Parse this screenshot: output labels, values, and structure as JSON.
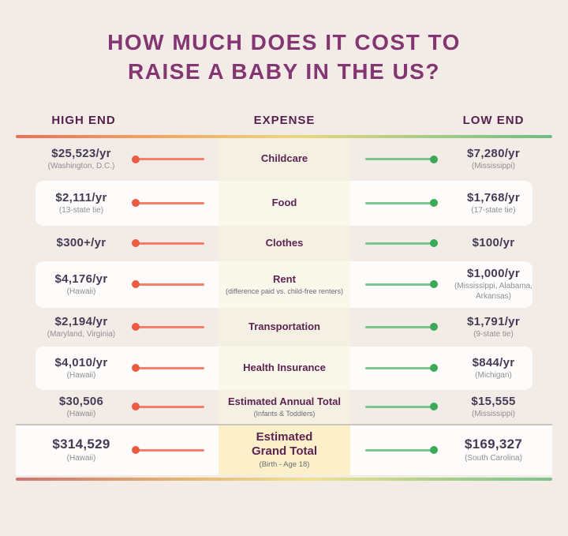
{
  "title": {
    "line1": "HOW MUCH DOES IT COST TO",
    "line2": "RAISE A BABY IN THE US?"
  },
  "columns": {
    "high": "HIGH END",
    "expense": "EXPENSE",
    "low": "LOW END"
  },
  "rows": [
    {
      "high_amount": "$25,523/yr",
      "high_location": "(Washington, D.C.)",
      "expense": "Childcare",
      "low_amount": "$7,280/yr",
      "low_location": "(Mississippi)"
    },
    {
      "high_amount": "$2,111/yr",
      "high_location": "(13-state tie)",
      "expense": "Food",
      "low_amount": "$1,768/yr",
      "low_location": "(17-state tie)"
    },
    {
      "high_amount": "$300+/yr",
      "expense": "Clothes",
      "low_amount": "$100/yr"
    },
    {
      "high_amount": "$4,176/yr",
      "high_location": "(Hawaii)",
      "expense": "Rent",
      "expense_note": "(difference paid vs. child-free renters)",
      "low_amount": "$1,000/yr",
      "low_location": "(Mississippi, Alabama, Arkansas)"
    },
    {
      "high_amount": "$2,194/yr",
      "high_location": "(Maryland, Virginia)",
      "expense": "Transportation",
      "low_amount": "$1,791/yr",
      "low_location": "(9-state tie)"
    },
    {
      "high_amount": "$4,010/yr",
      "high_location": "(Hawaii)",
      "expense": "Health Insurance",
      "low_amount": "$844/yr",
      "low_location": "(Michigan)"
    },
    {
      "high_amount": "$30,506",
      "high_location": "(Hawaii)",
      "expense": "Estimated Annual Total",
      "expense_note": "(Infants & Toddlers)",
      "low_amount": "$15,555",
      "low_location": "(Mississippi)"
    },
    {
      "high_amount": "$314,529",
      "high_location": "(Hawaii)",
      "expense": "Estimated Grand Total",
      "expense_note": "(Birth - Age 18)",
      "low_amount": "$169,327",
      "low_location": "(South Carolina)"
    }
  ],
  "colors": {
    "page_bg": "#f3ece6",
    "card_bg": "#fdfcfa",
    "strip_bg": "#f5f1e2",
    "strip_card_bg": "#faf7eb",
    "strip_grand_bg": "#fbf0ca",
    "title_color": "#833672",
    "header_color": "#57214e",
    "amount_color": "#443c57",
    "location_color": "#908d95",
    "expense_color": "#5d2351",
    "note_color": "#6e6a78",
    "divider_color": "#cbc5c0",
    "high_accent": "#eb5b42",
    "high_line": "#f4806a",
    "low_accent": "#3aa958",
    "low_line": "#7dc492"
  },
  "chart_data": {
    "type": "table",
    "title": "HOW MUCH DOES IT COST TO RAISE A BABY IN THE US?",
    "columns": [
      "HIGH END",
      "EXPENSE",
      "LOW END"
    ],
    "rows": [
      {
        "expense": "Childcare",
        "high_value": 25523,
        "high_unit": "/yr",
        "high_location": "Washington, D.C.",
        "low_value": 7280,
        "low_unit": "/yr",
        "low_location": "Mississippi"
      },
      {
        "expense": "Food",
        "high_value": 2111,
        "high_unit": "/yr",
        "high_location": "13-state tie",
        "low_value": 1768,
        "low_unit": "/yr",
        "low_location": "17-state tie"
      },
      {
        "expense": "Clothes",
        "high_value": 300,
        "high_qualifier": "+",
        "high_unit": "/yr",
        "low_value": 100,
        "low_unit": "/yr"
      },
      {
        "expense": "Rent",
        "expense_note": "difference paid vs. child-free renters",
        "high_value": 4176,
        "high_unit": "/yr",
        "high_location": "Hawaii",
        "low_value": 1000,
        "low_unit": "/yr",
        "low_location": "Mississippi, Alabama, Arkansas"
      },
      {
        "expense": "Transportation",
        "high_value": 2194,
        "high_unit": "/yr",
        "high_location": "Maryland, Virginia",
        "low_value": 1791,
        "low_unit": "/yr",
        "low_location": "9-state tie"
      },
      {
        "expense": "Health Insurance",
        "high_value": 4010,
        "high_unit": "/yr",
        "high_location": "Hawaii",
        "low_value": 844,
        "low_unit": "/yr",
        "low_location": "Michigan"
      },
      {
        "expense": "Estimated Annual Total",
        "expense_note": "Infants & Toddlers",
        "high_value": 30506,
        "high_location": "Hawaii",
        "low_value": 15555,
        "low_location": "Mississippi"
      },
      {
        "expense": "Estimated Grand Total",
        "expense_note": "Birth - Age 18",
        "high_value": 314529,
        "high_location": "Hawaii",
        "low_value": 169327,
        "low_location": "South Carolina"
      }
    ],
    "legend": {
      "high_end_marker": "coral line with dot at left",
      "low_end_marker": "green line with dot at right"
    },
    "layout": "three-column infographic table, gradient dividers top and bottom"
  }
}
